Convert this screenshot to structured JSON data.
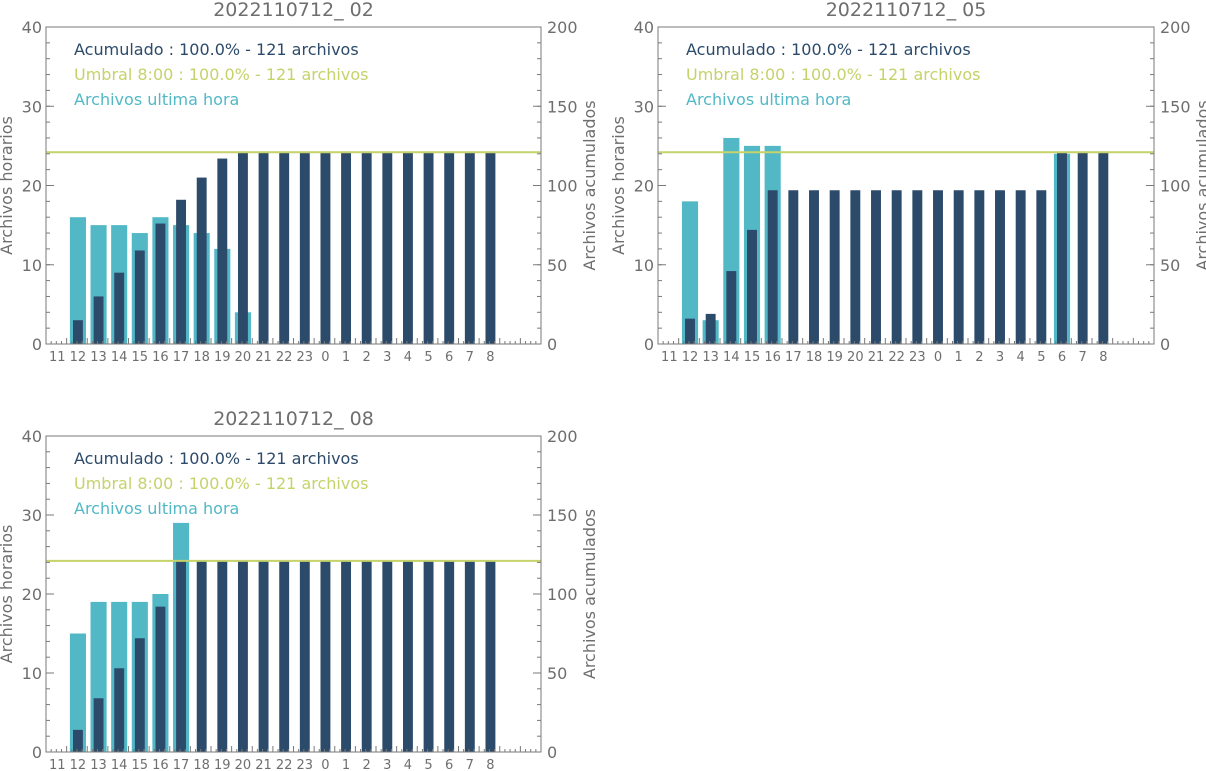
{
  "colors": {
    "hourly": "#52b8c6",
    "cumulative": "#2c4a6a",
    "threshold": "#c6d26a",
    "axis": "#7a7a7a",
    "text": "#6e6e6e"
  },
  "legend": {
    "cumulative": "Acumulado : 100.0% - 121 archivos",
    "threshold": "Umbral 8:00 : 100.0% - 121 archivos",
    "hourly": "Archivos ultima hora"
  },
  "chart_data": [
    {
      "type": "bar",
      "title": "2022110712_ 02",
      "categories": [
        "11",
        "12",
        "13",
        "14",
        "15",
        "16",
        "17",
        "18",
        "19",
        "20",
        "21",
        "22",
        "23",
        "0",
        "1",
        "2",
        "3",
        "4",
        "5",
        "6",
        "7",
        "8"
      ],
      "ylabel_left": "Archivos horarios",
      "ylabel_right": "Archivos acumulados",
      "ylim_left": [
        0,
        40
      ],
      "ylim_right": [
        0,
        200
      ],
      "yticks_left": [
        "0",
        "10",
        "20",
        "30",
        "40"
      ],
      "yticks_right": [
        "0",
        "50",
        "100",
        "150",
        "200"
      ],
      "threshold": 121,
      "series": [
        {
          "name": "Archivos ultima hora",
          "axis": "left",
          "values": [
            0,
            16,
            15,
            15,
            14,
            16,
            15,
            14,
            12,
            4,
            0,
            0,
            0,
            0,
            0,
            0,
            0,
            0,
            0,
            0,
            0,
            0
          ]
        },
        {
          "name": "Acumulado",
          "axis": "right",
          "values": [
            0,
            15,
            30,
            45,
            59,
            76,
            91,
            105,
            117,
            121,
            121,
            121,
            121,
            121,
            121,
            121,
            121,
            121,
            121,
            121,
            121,
            121
          ]
        }
      ]
    },
    {
      "type": "bar",
      "title": "2022110712_ 05",
      "categories": [
        "11",
        "12",
        "13",
        "14",
        "15",
        "16",
        "17",
        "18",
        "19",
        "20",
        "21",
        "22",
        "23",
        "0",
        "1",
        "2",
        "3",
        "4",
        "5",
        "6",
        "7",
        "8"
      ],
      "ylabel_left": "Archivos horarios",
      "ylabel_right": "Archivos acumulados",
      "ylim_left": [
        0,
        40
      ],
      "ylim_right": [
        0,
        200
      ],
      "yticks_left": [
        "0",
        "10",
        "20",
        "30",
        "40"
      ],
      "yticks_right": [
        "0",
        "50",
        "100",
        "150",
        "200"
      ],
      "threshold": 121,
      "series": [
        {
          "name": "Archivos ultima hora",
          "axis": "left",
          "values": [
            0,
            18,
            3,
            26,
            25,
            25,
            0,
            0,
            0,
            0,
            0,
            0,
            0,
            0,
            0,
            0,
            0,
            0,
            0,
            24,
            0,
            0
          ]
        },
        {
          "name": "Acumulado",
          "axis": "right",
          "values": [
            0,
            16,
            19,
            46,
            72,
            97,
            97,
            97,
            97,
            97,
            97,
            97,
            97,
            97,
            97,
            97,
            97,
            97,
            97,
            121,
            121,
            121
          ]
        }
      ]
    },
    {
      "type": "bar",
      "title": "2022110712_ 08",
      "categories": [
        "11",
        "12",
        "13",
        "14",
        "15",
        "16",
        "17",
        "18",
        "19",
        "20",
        "21",
        "22",
        "23",
        "0",
        "1",
        "2",
        "3",
        "4",
        "5",
        "6",
        "7",
        "8"
      ],
      "ylabel_left": "Archivos horarios",
      "ylabel_right": "Archivos acumulados",
      "ylim_left": [
        0,
        40
      ],
      "ylim_right": [
        0,
        200
      ],
      "yticks_left": [
        "0",
        "10",
        "20",
        "30",
        "40"
      ],
      "yticks_right": [
        "0",
        "50",
        "100",
        "150",
        "200"
      ],
      "threshold": 121,
      "series": [
        {
          "name": "Archivos ultima hora",
          "axis": "left",
          "values": [
            0,
            15,
            19,
            19,
            19,
            20,
            29,
            0,
            0,
            0,
            0,
            0,
            0,
            0,
            0,
            0,
            0,
            0,
            0,
            0,
            0,
            0
          ]
        },
        {
          "name": "Acumulado",
          "axis": "right",
          "values": [
            0,
            14,
            34,
            53,
            72,
            92,
            121,
            121,
            121,
            121,
            121,
            121,
            121,
            121,
            121,
            121,
            121,
            121,
            121,
            121,
            121,
            121
          ]
        }
      ]
    }
  ]
}
